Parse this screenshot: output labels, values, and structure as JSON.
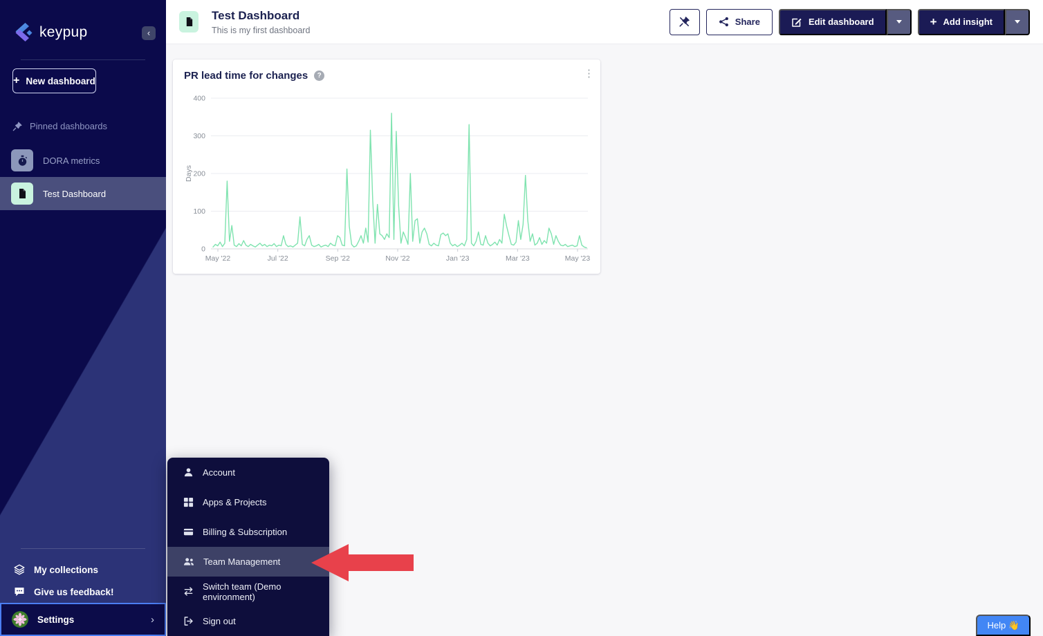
{
  "colors": {
    "sidebar_dark": "#0b0a4b",
    "sidebar_light": "#2c3377",
    "accent_navy": "#1b1b55",
    "mint_tile": "#c9f3df",
    "chart_green": "#7fe3af",
    "highlight_row": "#3d4166",
    "arrow_red": "#e8414b",
    "help_blue": "#4286f5",
    "settings_focus_blue": "#4b7df2"
  },
  "sidebar": {
    "brand": "keypup",
    "new_dashboard_label": "New dashboard",
    "pinned_header": "Pinned dashboards",
    "pinned_items": [
      {
        "label": "DORA metrics"
      },
      {
        "label": "Test Dashboard"
      }
    ],
    "my_collections_label": "My collections",
    "feedback_label": "Give us feedback!",
    "settings_label": "Settings"
  },
  "header": {
    "title": "Test Dashboard",
    "subtitle": "This is my first dashboard",
    "share_label": "Share",
    "edit_dashboard_label": "Edit dashboard",
    "add_insight_label": "Add insight"
  },
  "insight_card": {
    "title": "PR lead time for changes",
    "help_glyph": "?",
    "kebab_glyph": "⋮"
  },
  "chart_data": {
    "type": "line",
    "title": "PR lead time for changes",
    "series_name": "PR lead time",
    "ylabel": "Days",
    "xlabel": "",
    "ylim": [
      0,
      400
    ],
    "y_ticks": [
      0,
      100,
      200,
      300,
      400
    ],
    "x_tick_labels": [
      "May '22",
      "Jul '22",
      "Sep '22",
      "Nov '22",
      "Jan '23",
      "Mar '23",
      "May '23"
    ],
    "x_range": [
      "May 2022",
      "May 2023"
    ],
    "grid": true,
    "legend": false,
    "color": "#7fe3af",
    "values": [
      5,
      12,
      8,
      18,
      6,
      15,
      180,
      20,
      62,
      10,
      6,
      14,
      8,
      22,
      10,
      6,
      12,
      8,
      5,
      10,
      15,
      8,
      12,
      6,
      10,
      8,
      14,
      6,
      10,
      8,
      35,
      12,
      6,
      8,
      5,
      10,
      15,
      85,
      12,
      8,
      25,
      35,
      10,
      6,
      8,
      12,
      5,
      8,
      10,
      6,
      15,
      10,
      8,
      35,
      30,
      10,
      8,
      212,
      60,
      12,
      5,
      8,
      20,
      35,
      15,
      55,
      18,
      315,
      128,
      15,
      118,
      40,
      35,
      25,
      40,
      30,
      360,
      25,
      312,
      115,
      15,
      45,
      30,
      12,
      200,
      20,
      75,
      80,
      15,
      45,
      55,
      40,
      12,
      8,
      15,
      10,
      8,
      38,
      42,
      35,
      40,
      15,
      8,
      12,
      6,
      10,
      15,
      8,
      25,
      330,
      15,
      8,
      20,
      45,
      12,
      10,
      35,
      15,
      8,
      12,
      18,
      10,
      25,
      15,
      92,
      60,
      35,
      12,
      10,
      18,
      75,
      25,
      65,
      195,
      75,
      20,
      40,
      10,
      15,
      30,
      12,
      22,
      15,
      55,
      40,
      12,
      35,
      20,
      10,
      8,
      12,
      6,
      8,
      10,
      6,
      8,
      35,
      10,
      5,
      3
    ]
  },
  "settings_menu": {
    "items": [
      {
        "label": "Account"
      },
      {
        "label": "Apps & Projects"
      },
      {
        "label": "Billing & Subscription"
      },
      {
        "label": "Team Management"
      },
      {
        "label": "Switch team (Demo environment)"
      },
      {
        "label": "Sign out"
      }
    ]
  },
  "help_button_label": "Help 👋"
}
